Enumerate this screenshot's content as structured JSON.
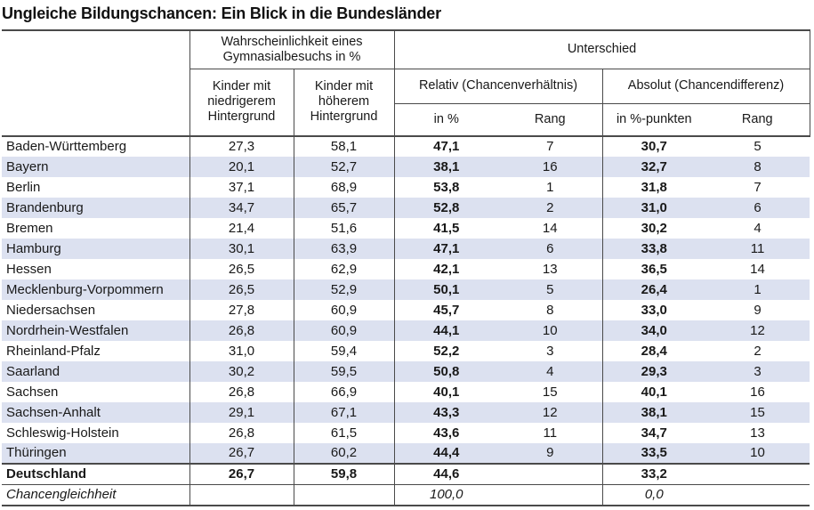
{
  "title": "Ungleiche Bildungschancen: Ein Blick in die Bundesländer",
  "colors": {
    "stripe": "#dce1f0",
    "border": "#4a4a4a",
    "text": "#191919"
  },
  "chart_data": {
    "type": "table",
    "title": "Ungleiche Bildungschancen: Ein Blick in die Bundesländer",
    "headers": {
      "probability_group": "Wahrscheinlichkeit eines Gymnasialbesuchs in %",
      "difference_group": "Unterschied",
      "low_background": "Kinder mit niedrigerem Hintergrund",
      "high_background": "Kinder mit höherem Hintergrund",
      "relative_group": "Relativ (Chancenverhältnis)",
      "absolute_group": "Absolut (Chancendifferenz)",
      "relative_value": "in %",
      "relative_rank": "Rang",
      "absolute_value": "in %-punkten",
      "absolute_rank": "Rang"
    },
    "rows": [
      {
        "state": "Baden-Württemberg",
        "low": "27,3",
        "high": "58,1",
        "relative": "47,1",
        "relative_rank": "7",
        "absolute": "30,7",
        "absolute_rank": "5"
      },
      {
        "state": "Bayern",
        "low": "20,1",
        "high": "52,7",
        "relative": "38,1",
        "relative_rank": "16",
        "absolute": "32,7",
        "absolute_rank": "8"
      },
      {
        "state": "Berlin",
        "low": "37,1",
        "high": "68,9",
        "relative": "53,8",
        "relative_rank": "1",
        "absolute": "31,8",
        "absolute_rank": "7"
      },
      {
        "state": "Brandenburg",
        "low": "34,7",
        "high": "65,7",
        "relative": "52,8",
        "relative_rank": "2",
        "absolute": "31,0",
        "absolute_rank": "6"
      },
      {
        "state": "Bremen",
        "low": "21,4",
        "high": "51,6",
        "relative": "41,5",
        "relative_rank": "14",
        "absolute": "30,2",
        "absolute_rank": "4"
      },
      {
        "state": "Hamburg",
        "low": "30,1",
        "high": "63,9",
        "relative": "47,1",
        "relative_rank": "6",
        "absolute": "33,8",
        "absolute_rank": "11"
      },
      {
        "state": "Hessen",
        "low": "26,5",
        "high": "62,9",
        "relative": "42,1",
        "relative_rank": "13",
        "absolute": "36,5",
        "absolute_rank": "14"
      },
      {
        "state": "Mecklenburg-Vorpommern",
        "low": "26,5",
        "high": "52,9",
        "relative": "50,1",
        "relative_rank": "5",
        "absolute": "26,4",
        "absolute_rank": "1"
      },
      {
        "state": "Niedersachsen",
        "low": "27,8",
        "high": "60,9",
        "relative": "45,7",
        "relative_rank": "8",
        "absolute": "33,0",
        "absolute_rank": "9"
      },
      {
        "state": "Nordrhein-Westfalen",
        "low": "26,8",
        "high": "60,9",
        "relative": "44,1",
        "relative_rank": "10",
        "absolute": "34,0",
        "absolute_rank": "12"
      },
      {
        "state": "Rheinland-Pfalz",
        "low": "31,0",
        "high": "59,4",
        "relative": "52,2",
        "relative_rank": "3",
        "absolute": "28,4",
        "absolute_rank": "2"
      },
      {
        "state": "Saarland",
        "low": "30,2",
        "high": "59,5",
        "relative": "50,8",
        "relative_rank": "4",
        "absolute": "29,3",
        "absolute_rank": "3"
      },
      {
        "state": "Sachsen",
        "low": "26,8",
        "high": "66,9",
        "relative": "40,1",
        "relative_rank": "15",
        "absolute": "40,1",
        "absolute_rank": "16"
      },
      {
        "state": "Sachsen-Anhalt",
        "low": "29,1",
        "high": "67,1",
        "relative": "43,3",
        "relative_rank": "12",
        "absolute": "38,1",
        "absolute_rank": "15"
      },
      {
        "state": "Schleswig-Holstein",
        "low": "26,8",
        "high": "61,5",
        "relative": "43,6",
        "relative_rank": "11",
        "absolute": "34,7",
        "absolute_rank": "13"
      },
      {
        "state": "Thüringen",
        "low": "26,7",
        "high": "60,2",
        "relative": "44,4",
        "relative_rank": "9",
        "absolute": "33,5",
        "absolute_rank": "10"
      }
    ],
    "summary_rows": [
      {
        "state": "Deutschland",
        "low": "26,7",
        "high": "59,8",
        "relative": "44,6",
        "relative_rank": "",
        "absolute": "33,2",
        "absolute_rank": "",
        "emphasis": "bold"
      },
      {
        "state": "Chancengleichheit",
        "low": "",
        "high": "",
        "relative": "100,0",
        "relative_rank": "",
        "absolute": "0,0",
        "absolute_rank": "",
        "emphasis": "italic"
      }
    ]
  }
}
